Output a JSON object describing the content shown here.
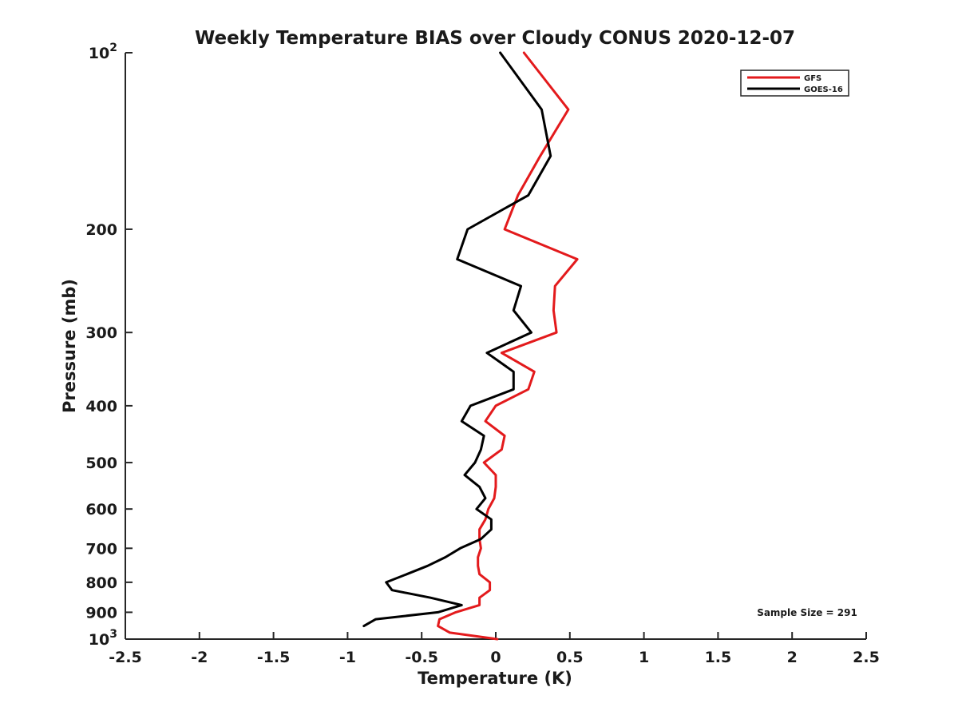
{
  "chart_data": {
    "type": "line",
    "title": "Weekly Temperature BIAS over Cloudy CONUS 2020-12-07",
    "xlabel": "Temperature (K)",
    "ylabel": "Pressure (mb)",
    "xlim": [
      -2.5,
      2.5
    ],
    "ylim": [
      100,
      1000
    ],
    "y_scale": "log",
    "y_reversed": true,
    "x_ticks": [
      -2.5,
      -2,
      -1.5,
      -1,
      -0.5,
      0,
      0.5,
      1,
      1.5,
      2,
      2.5
    ],
    "x_tick_labels": [
      "-2.5",
      "-2",
      "-1.5",
      "-1",
      "-0.5",
      "0",
      "0.5",
      "1",
      "1.5",
      "2",
      "2.5"
    ],
    "y_ticks": [
      100,
      200,
      300,
      400,
      500,
      600,
      700,
      800,
      900,
      1000
    ],
    "y_tick_labels": [
      {
        "base": "10",
        "exp": "2"
      },
      {
        "base": "200",
        "exp": ""
      },
      {
        "base": "300",
        "exp": ""
      },
      {
        "base": "400",
        "exp": ""
      },
      {
        "base": "500",
        "exp": ""
      },
      {
        "base": "600",
        "exp": ""
      },
      {
        "base": "700",
        "exp": ""
      },
      {
        "base": "800",
        "exp": ""
      },
      {
        "base": "900",
        "exp": ""
      },
      {
        "base": "10",
        "exp": "3"
      }
    ],
    "grid": false,
    "legend_position": "top-right",
    "series": [
      {
        "name": "GFS",
        "color": "#e31a1c",
        "points": [
          {
            "x": 0.19,
            "p": 100
          },
          {
            "x": 0.49,
            "p": 125
          },
          {
            "x": 0.3,
            "p": 150
          },
          {
            "x": 0.15,
            "p": 175
          },
          {
            "x": 0.06,
            "p": 200
          },
          {
            "x": 0.55,
            "p": 225
          },
          {
            "x": 0.4,
            "p": 250
          },
          {
            "x": 0.39,
            "p": 275
          },
          {
            "x": 0.41,
            "p": 300
          },
          {
            "x": 0.04,
            "p": 325
          },
          {
            "x": 0.26,
            "p": 350
          },
          {
            "x": 0.22,
            "p": 375
          },
          {
            "x": 0.0,
            "p": 400
          },
          {
            "x": -0.07,
            "p": 425
          },
          {
            "x": 0.06,
            "p": 450
          },
          {
            "x": 0.04,
            "p": 475
          },
          {
            "x": -0.08,
            "p": 500
          },
          {
            "x": 0.0,
            "p": 525
          },
          {
            "x": 0.0,
            "p": 550
          },
          {
            "x": -0.01,
            "p": 575
          },
          {
            "x": -0.05,
            "p": 600
          },
          {
            "x": -0.07,
            "p": 625
          },
          {
            "x": -0.11,
            "p": 650
          },
          {
            "x": -0.11,
            "p": 675
          },
          {
            "x": -0.1,
            "p": 700
          },
          {
            "x": -0.12,
            "p": 725
          },
          {
            "x": -0.12,
            "p": 750
          },
          {
            "x": -0.11,
            "p": 775
          },
          {
            "x": -0.04,
            "p": 800
          },
          {
            "x": -0.04,
            "p": 825
          },
          {
            "x": -0.11,
            "p": 850
          },
          {
            "x": -0.11,
            "p": 875
          },
          {
            "x": -0.27,
            "p": 900
          },
          {
            "x": -0.38,
            "p": 925
          },
          {
            "x": -0.39,
            "p": 950
          },
          {
            "x": -0.31,
            "p": 975
          },
          {
            "x": 0.01,
            "p": 1000
          }
        ]
      },
      {
        "name": "GOES-16",
        "color": "#000000",
        "points": [
          {
            "x": 0.03,
            "p": 100
          },
          {
            "x": 0.31,
            "p": 125
          },
          {
            "x": 0.37,
            "p": 150
          },
          {
            "x": 0.22,
            "p": 175
          },
          {
            "x": -0.19,
            "p": 200
          },
          {
            "x": -0.26,
            "p": 225
          },
          {
            "x": 0.17,
            "p": 250
          },
          {
            "x": 0.12,
            "p": 275
          },
          {
            "x": 0.24,
            "p": 300
          },
          {
            "x": -0.06,
            "p": 325
          },
          {
            "x": 0.12,
            "p": 350
          },
          {
            "x": 0.12,
            "p": 375
          },
          {
            "x": -0.17,
            "p": 400
          },
          {
            "x": -0.23,
            "p": 425
          },
          {
            "x": -0.08,
            "p": 450
          },
          {
            "x": -0.1,
            "p": 475
          },
          {
            "x": -0.14,
            "p": 500
          },
          {
            "x": -0.21,
            "p": 525
          },
          {
            "x": -0.11,
            "p": 550
          },
          {
            "x": -0.07,
            "p": 575
          },
          {
            "x": -0.13,
            "p": 600
          },
          {
            "x": -0.03,
            "p": 625
          },
          {
            "x": -0.03,
            "p": 650
          },
          {
            "x": -0.1,
            "p": 675
          },
          {
            "x": -0.24,
            "p": 700
          },
          {
            "x": -0.34,
            "p": 725
          },
          {
            "x": -0.46,
            "p": 750
          },
          {
            "x": -0.6,
            "p": 775
          },
          {
            "x": -0.74,
            "p": 800
          },
          {
            "x": -0.7,
            "p": 825
          },
          {
            "x": -0.44,
            "p": 850
          },
          {
            "x": -0.23,
            "p": 875
          },
          {
            "x": -0.39,
            "p": 900
          },
          {
            "x": -0.81,
            "p": 925
          },
          {
            "x": -0.89,
            "p": 950
          }
        ]
      }
    ],
    "annotation": "Sample Size = 291"
  }
}
